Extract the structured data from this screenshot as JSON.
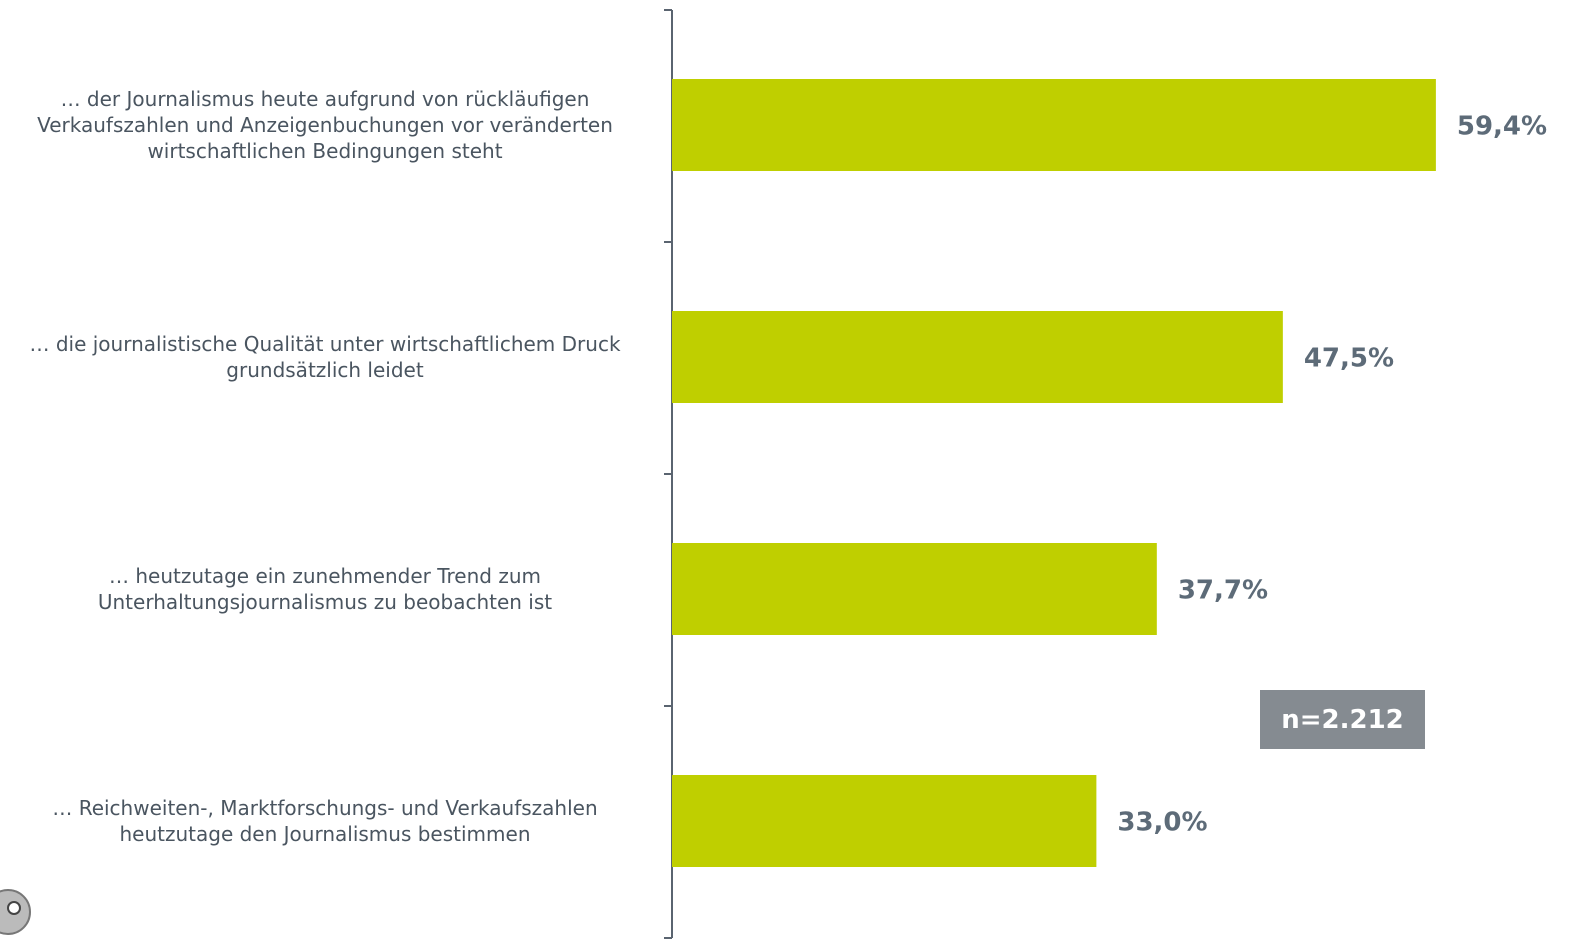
{
  "chart_data": {
    "type": "barh",
    "categories": [
      "… der Journalismus heute aufgrund von rückläufigen\nVerkaufszahlen und Anzeigenbuchungen vor veränderten\nwirtschaftlichen Bedingungen steht",
      "… die journalistische Qualität unter wirtschaftlichem Druck\ngrundsätzlich leidet",
      "… heutzutage ein zunehmender Trend zum\nUnterhaltungsjournalismus zu beobachten ist",
      "… Reichweiten-, Marktforschungs- und Verkaufszahlen\nheutzutage den Journalismus bestimmen"
    ],
    "values": [
      59.4,
      47.5,
      37.7,
      33.0
    ],
    "value_labels": [
      "59,4%",
      "47,5%",
      "37,7%",
      "33,0%"
    ],
    "color": "#bfcf00",
    "annotation": "n=2.212"
  }
}
